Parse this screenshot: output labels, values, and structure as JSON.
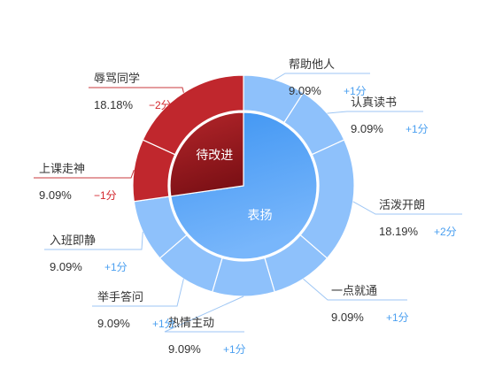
{
  "chart_data": {
    "type": "pie",
    "style": "nested-donut",
    "inner_ring": [
      {
        "name": "表扬",
        "value": 72.73,
        "color": "#3d94f2",
        "color_end": "#78b6fb"
      },
      {
        "name": "待改进",
        "value": 27.27,
        "color": "#b5262b",
        "color_end": "#7e1116"
      }
    ],
    "outer_ring": [
      {
        "name": "帮助他人",
        "percent": "9.09%",
        "value": 9.09,
        "score": "+1分",
        "group": "表扬"
      },
      {
        "name": "认真读书",
        "percent": "9.09%",
        "value": 9.09,
        "score": "+1分",
        "group": "表扬"
      },
      {
        "name": "活泼开朗",
        "percent": "18.19%",
        "value": 18.19,
        "score": "+2分",
        "group": "表扬"
      },
      {
        "name": "一点就通",
        "percent": "9.09%",
        "value": 9.09,
        "score": "+1分",
        "group": "表扬"
      },
      {
        "name": "热情主动",
        "percent": "9.09%",
        "value": 9.09,
        "score": "+1分",
        "group": "表扬"
      },
      {
        "name": "举手答问",
        "percent": "9.09%",
        "value": 9.09,
        "score": "+1分",
        "group": "表扬"
      },
      {
        "name": "入班即静",
        "percent": "9.09%",
        "value": 9.09,
        "score": "+1分",
        "group": "表扬"
      },
      {
        "name": "上课走神",
        "percent": "9.09%",
        "value": 9.09,
        "score": "−1分",
        "group": "待改进"
      },
      {
        "name": "辱骂同学",
        "percent": "18.18%",
        "value": 18.18,
        "score": "−2分",
        "group": "待改进"
      }
    ],
    "colors": {
      "positive_slice": "#8ec1fb",
      "negative_slice": "#c0272d",
      "positive_score": "#4a9ff0",
      "negative_score": "#d3262c",
      "label_text": "#333333",
      "leader_line": "#9ec6f4",
      "leader_line_negative": "#c8383d"
    }
  }
}
